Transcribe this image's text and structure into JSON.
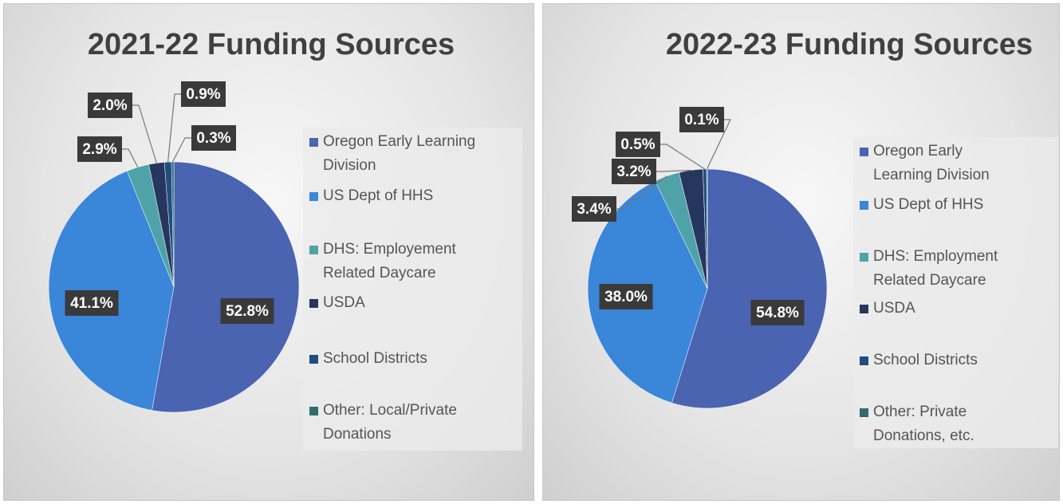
{
  "chart_data": [
    {
      "type": "pie",
      "title": "2021-22 Funding Sources",
      "categories": [
        "Oregon Early Learning Division",
        "US Dept of HHS",
        "DHS: Employement Related Daycare",
        "USDA",
        "School Districts",
        "Other: Local/Private Donations"
      ],
      "values": [
        52.8,
        41.1,
        2.9,
        2.0,
        0.9,
        0.3
      ],
      "value_labels": [
        "52.8%",
        "41.1%",
        "2.9%",
        "2.0%",
        "0.9%",
        "0.3%"
      ],
      "colors": [
        "#4a64b2",
        "#3a86d8",
        "#4fa3a8",
        "#27365e",
        "#1f4e7f",
        "#2f6e6c"
      ],
      "legend": "right"
    },
    {
      "type": "pie",
      "title": "2022-23 Funding Sources",
      "categories": [
        "Oregon Early Learning Division",
        "US Dept of HHS",
        "DHS: Employment Related Daycare",
        "USDA",
        "School Districts",
        "Other: Private Donations, etc."
      ],
      "values": [
        54.8,
        38.0,
        3.4,
        3.2,
        0.5,
        0.1
      ],
      "value_labels": [
        "54.8%",
        "38.0%",
        "3.4%",
        "3.2%",
        "0.5%",
        "0.1%"
      ],
      "colors": [
        "#4a64b2",
        "#3a86d8",
        "#4fa3a8",
        "#27365e",
        "#1f4e7f",
        "#2f6e6c"
      ],
      "legend": "right"
    }
  ]
}
